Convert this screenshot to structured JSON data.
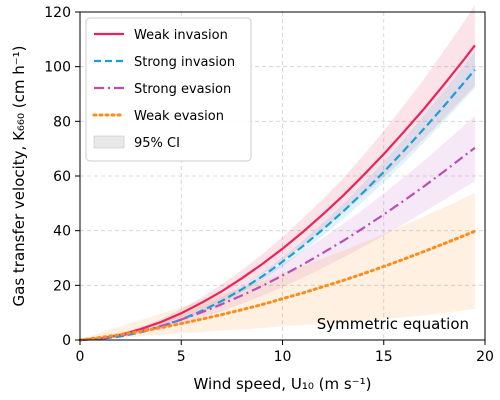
{
  "chart_data": {
    "type": "line",
    "xlabel": "Wind speed, U₁₀ (m s⁻¹)",
    "ylabel": "Gas transfer velocity, K₆₆₀ (cm h⁻¹)",
    "xlim": [
      0,
      20
    ],
    "ylim": [
      0,
      120
    ],
    "xticks": [
      0,
      5,
      10,
      15,
      20
    ],
    "yticks": [
      0,
      20,
      40,
      60,
      80,
      100,
      120
    ],
    "grid": true,
    "legend_position": "top-left",
    "annotation": "Symmetric equation",
    "x": [
      0,
      1,
      2,
      3,
      4,
      5,
      6,
      7,
      8,
      9,
      10,
      11,
      12,
      13,
      14,
      15,
      16,
      17,
      18,
      19,
      19.5
    ],
    "series": [
      {
        "name": "Weak invasion",
        "color": "#e8245a",
        "dash": "solid",
        "values": [
          0.0,
          0.6,
          1.9,
          4.0,
          6.6,
          9.8,
          13.6,
          17.8,
          22.6,
          27.8,
          33.4,
          39.5,
          46.0,
          52.9,
          60.3,
          68.0,
          76.2,
          84.7,
          93.7,
          103.0,
          107.8
        ],
        "ci_low": [
          0.0,
          0.3,
          1.4,
          3.3,
          5.6,
          8.3,
          11.6,
          15.3,
          19.6,
          24.2,
          29.1,
          34.5,
          40.4,
          46.6,
          53.0,
          59.5,
          66.5,
          73.8,
          81.3,
          89.2,
          93.0
        ],
        "ci_high": [
          0.0,
          0.9,
          2.4,
          4.7,
          7.6,
          11.3,
          15.6,
          20.4,
          25.6,
          31.4,
          37.7,
          44.5,
          51.6,
          59.2,
          67.6,
          76.5,
          85.9,
          95.6,
          106.1,
          116.8,
          122.6
        ]
      },
      {
        "name": "Strong invasion",
        "color": "#1a9fd9",
        "dash": "dashed",
        "values": [
          0.0,
          0.4,
          1.3,
          2.8,
          4.9,
          7.5,
          10.6,
          14.3,
          18.6,
          23.3,
          28.6,
          34.3,
          40.5,
          47.1,
          54.1,
          61.5,
          69.3,
          77.4,
          85.8,
          94.5,
          98.9
        ],
        "ci_low": [
          0.0,
          0.3,
          1.1,
          2.5,
          4.4,
          6.9,
          9.8,
          13.3,
          17.4,
          21.9,
          26.9,
          32.3,
          38.1,
          44.3,
          50.8,
          57.7,
          64.9,
          72.4,
          80.2,
          88.2,
          92.2
        ],
        "ci_high": [
          0.0,
          0.5,
          1.5,
          3.1,
          5.4,
          8.1,
          11.4,
          15.3,
          19.8,
          24.7,
          30.3,
          36.3,
          42.9,
          49.9,
          57.4,
          65.3,
          73.7,
          82.4,
          91.4,
          100.8,
          105.6
        ]
      },
      {
        "name": "Strong evasion",
        "color": "#b84fb6",
        "dash": "dashdot",
        "values": [
          0.0,
          0.5,
          1.6,
          3.2,
          5.1,
          7.5,
          10.1,
          13.1,
          16.3,
          19.8,
          23.6,
          27.6,
          31.9,
          36.3,
          41.0,
          45.9,
          51.0,
          56.3,
          61.8,
          67.5,
          70.3
        ],
        "ci_low": [
          0.0,
          0.3,
          1.1,
          2.4,
          4.0,
          5.9,
          8.1,
          10.6,
          13.3,
          16.2,
          19.4,
          22.8,
          26.4,
          30.2,
          34.1,
          38.2,
          42.5,
          46.9,
          51.4,
          55.9,
          58.1
        ],
        "ci_high": [
          0.0,
          0.7,
          2.1,
          4.0,
          6.3,
          9.1,
          12.2,
          15.7,
          19.4,
          23.5,
          27.8,
          32.4,
          37.3,
          42.5,
          47.9,
          53.6,
          59.5,
          65.7,
          72.1,
          78.7,
          82.0
        ]
      },
      {
        "name": "Weak evasion",
        "color": "#ff8c1a",
        "dash": "dotted",
        "values": [
          0.0,
          0.9,
          2.0,
          3.2,
          4.5,
          6.0,
          7.6,
          9.3,
          11.1,
          13.0,
          15.1,
          17.2,
          19.5,
          21.8,
          24.3,
          26.9,
          29.6,
          32.4,
          35.3,
          38.3,
          39.8
        ],
        "ci_low": [
          0.0,
          0.3,
          0.8,
          1.3,
          1.9,
          2.4,
          2.9,
          3.5,
          3.9,
          4.4,
          5.0,
          5.5,
          6.0,
          6.4,
          7.0,
          7.6,
          8.3,
          9.0,
          9.9,
          10.9,
          11.4
        ],
        "ci_high": [
          0.0,
          2.6,
          5.0,
          7.3,
          9.6,
          12.0,
          14.4,
          16.8,
          19.2,
          21.7,
          24.3,
          27.0,
          29.8,
          32.7,
          35.7,
          38.8,
          42.0,
          45.3,
          48.6,
          52.0,
          53.8
        ]
      }
    ],
    "ci_legend": {
      "name": "95% CI",
      "color": "#d9d9d9"
    }
  }
}
